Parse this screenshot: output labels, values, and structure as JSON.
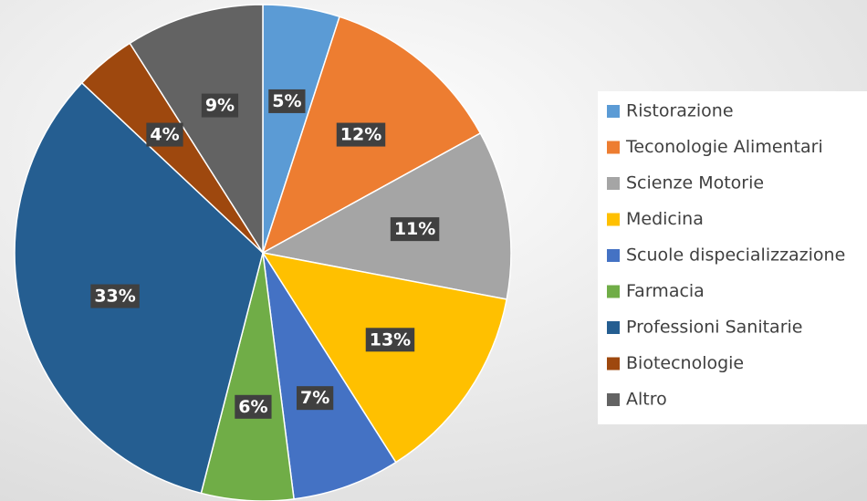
{
  "chart_data": {
    "type": "pie",
    "categories": [
      "Ristorazione",
      "Teconologie Alimentari",
      "Scienze Motorie",
      "Medicina",
      "Scuole dispecializzazione",
      "Farmacia",
      "Professioni Sanitarie",
      "Biotecnologie",
      "Altro"
    ],
    "values": [
      5,
      12,
      11,
      13,
      7,
      6,
      33,
      4,
      9
    ],
    "value_labels": [
      "5%",
      "12%",
      "11%",
      "13%",
      "7%",
      "6%",
      "33%",
      "4%",
      "9%"
    ],
    "colors": [
      "#5b9bd5",
      "#ed7d31",
      "#a5a5a5",
      "#ffc000",
      "#4472c4",
      "#70ad47",
      "#255e91",
      "#9e480e",
      "#636363"
    ],
    "legend": "right"
  }
}
